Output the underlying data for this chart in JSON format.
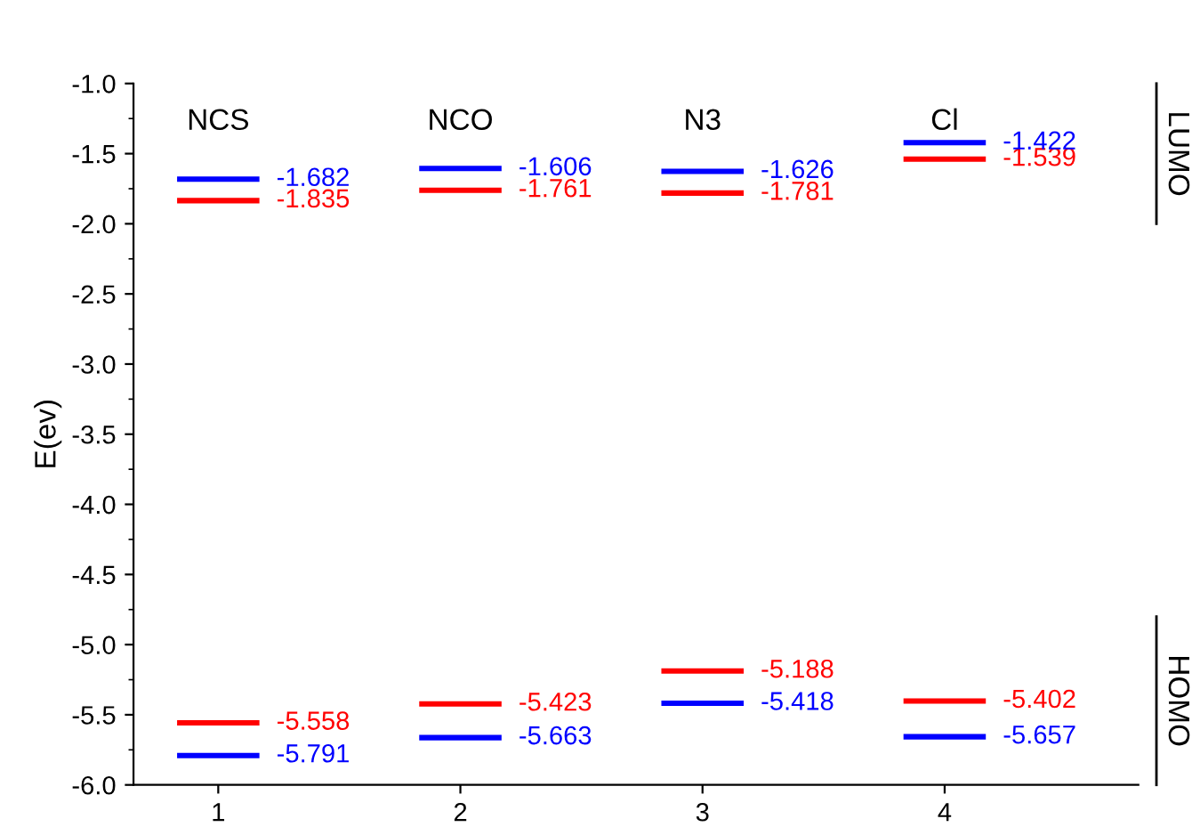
{
  "chart_data": {
    "type": "line",
    "ylabel": "E(ev)",
    "series": [
      {
        "color": "#ff0000",
        "x": [
          0.83,
          1.17
        ],
        "values": [
          -1.835,
          -1.835
        ],
        "value_labels": [
          null,
          "-1.835"
        ]
      },
      {
        "color": "#ff0000",
        "x": [
          1.83,
          2.17
        ],
        "values": [
          -1.761,
          -1.761
        ],
        "value_labels": [
          null,
          "-1.761"
        ]
      },
      {
        "color": "#ff0000",
        "x": [
          2.83,
          3.17
        ],
        "values": [
          -1.781,
          -1.781
        ],
        "value_labels": [
          null,
          "-1.781"
        ]
      },
      {
        "color": "#ff0000",
        "x": [
          3.83,
          4.17
        ],
        "values": [
          -1.539,
          -1.539
        ],
        "value_labels": [
          null,
          "-1.539"
        ]
      },
      {
        "color": "#0000ff",
        "x": [
          0.83,
          1.17
        ],
        "values": [
          -1.682,
          -1.682
        ],
        "value_labels": [
          null,
          "-1.682"
        ]
      },
      {
        "color": "#0000ff",
        "x": [
          1.83,
          2.17
        ],
        "values": [
          -1.606,
          -1.606
        ],
        "value_labels": [
          null,
          "-1.606"
        ]
      },
      {
        "color": "#0000ff",
        "x": [
          2.83,
          3.17
        ],
        "values": [
          -1.626,
          -1.626
        ],
        "value_labels": [
          null,
          "-1.626"
        ]
      },
      {
        "color": "#0000ff",
        "x": [
          3.83,
          4.17
        ],
        "values": [
          -1.422,
          -1.422
        ],
        "value_labels": [
          null,
          "-1.422"
        ]
      },
      {
        "color": "#ff0000",
        "x": [
          0.83,
          1.17
        ],
        "values": [
          -5.558,
          -5.558
        ],
        "value_labels": [
          null,
          "-5.558"
        ]
      },
      {
        "color": "#ff0000",
        "x": [
          1.83,
          2.17
        ],
        "values": [
          -5.423,
          -5.423
        ],
        "value_labels": [
          null,
          "-5.423"
        ]
      },
      {
        "color": "#ff0000",
        "x": [
          2.83,
          3.17
        ],
        "values": [
          -5.188,
          -5.188
        ],
        "value_labels": [
          null,
          "-5.188"
        ]
      },
      {
        "color": "#ff0000",
        "x": [
          3.83,
          4.17
        ],
        "values": [
          -5.402,
          -5.402
        ],
        "value_labels": [
          null,
          "-5.402"
        ]
      },
      {
        "color": "#0000ff",
        "x": [
          0.83,
          1.17
        ],
        "values": [
          -5.791,
          -5.791
        ],
        "value_labels": [
          null,
          "-5.791"
        ]
      },
      {
        "color": "#0000ff",
        "x": [
          1.83,
          2.17
        ],
        "values": [
          -5.663,
          -5.663
        ],
        "value_labels": [
          null,
          "-5.663"
        ]
      },
      {
        "color": "#0000ff",
        "x": [
          2.83,
          3.17
        ],
        "values": [
          -5.418,
          -5.418
        ],
        "value_labels": [
          null,
          "-5.418"
        ]
      },
      {
        "color": "#0000ff",
        "x": [
          3.83,
          4.17
        ],
        "values": [
          -5.657,
          -5.657
        ],
        "value_labels": [
          null,
          "-5.657"
        ]
      }
    ],
    "xlim": [
      0.65,
      4.8
    ],
    "xticks": [
      1,
      2,
      3,
      4
    ],
    "ylim": [
      -6.0,
      -1.0
    ],
    "yticks": [
      {
        "value": -6.0,
        "label": "-6.0"
      },
      -5.5,
      {
        "value": -5.0,
        "label": "-5.0"
      },
      -4.5,
      {
        "value": -4.0,
        "label": "-4.0"
      },
      -3.5,
      {
        "value": -3.0,
        "label": "-3.0"
      },
      -2.5,
      {
        "value": -2.0,
        "label": "-2.0"
      },
      -1.5,
      {
        "value": -1.0,
        "label": "-1.0"
      }
    ],
    "grid": false,
    "legend": false,
    "annotations": [
      "NCS",
      "NCO",
      "N3",
      "Cl",
      "LUMO",
      "HOMO"
    ]
  }
}
